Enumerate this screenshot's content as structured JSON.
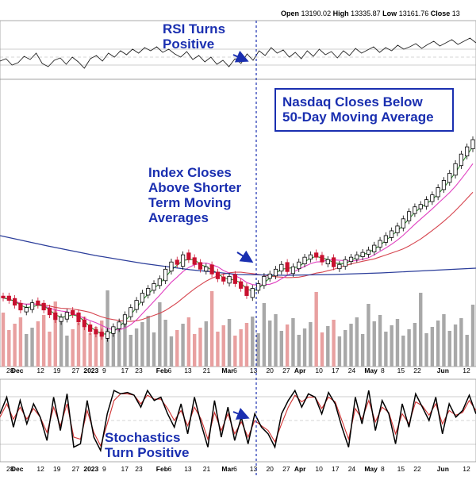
{
  "header": {
    "open_label": "Open",
    "open_value": "13190.02",
    "high_label": "High",
    "high_value": "13335.87",
    "low_label": "Low",
    "low_value": "13161.76",
    "close_label": "Close",
    "close_value": "13"
  },
  "annotations": {
    "rsi": [
      "RSI Turns",
      "Positive"
    ],
    "index": [
      "Index Closes",
      "Above Shorter",
      "Term Moving",
      "Averages"
    ],
    "nasdaq": [
      "Nasdaq Closes Below",
      "50-Day Moving Average"
    ],
    "stochastics": [
      "Stochastics",
      "Turn Positive"
    ]
  },
  "colors": {
    "annotation": "#1a2fb0",
    "rsi_line": "#222222",
    "price_up": "#000000",
    "price_down": "#c8102e",
    "ma_short": "#2e8b2e",
    "ma_mid": "#e040c0",
    "ma_long": "#d6454f",
    "ma_200": "#2b3d9a",
    "volume_up": "#a8a8a8",
    "volume_down": "#e8a0a0",
    "stoch_k": "#000000",
    "stoch_d": "#d03030",
    "grid": "#dddddd"
  },
  "chart_data": {
    "type": "candlestick",
    "x_axis_labels": [
      "28",
      "Dec",
      "12",
      "19",
      "27",
      "2023",
      "9",
      "17",
      "23",
      "Feb",
      "6",
      "13",
      "21",
      "Mar",
      "6",
      "13",
      "20",
      "27",
      "Apr",
      "10",
      "17",
      "24",
      "May",
      "8",
      "15",
      "22",
      "Jun",
      "12"
    ],
    "x_axis_label_days": [
      -2,
      0,
      11,
      18,
      26,
      31,
      39,
      47,
      53,
      62,
      67,
      74,
      82,
      90,
      95,
      102,
      109,
      116,
      121,
      130,
      137,
      144,
      151,
      158,
      165,
      172,
      182,
      193
    ],
    "stoch_axis_labels": [
      "28",
      "Dec",
      "12",
      "19",
      "27",
      "2023",
      "9",
      "17",
      "23",
      "Feb",
      "6",
      "13",
      "21",
      "Mar",
      "6",
      "13",
      "20",
      "27",
      "Apr",
      "10",
      "17",
      "24",
      "May",
      "8",
      "15",
      "22",
      "Jun",
      "12"
    ],
    "price_closes": [
      11400,
      11350,
      11250,
      11150,
      11200,
      11300,
      11250,
      11150,
      11050,
      10950,
      11000,
      11100,
      11050,
      10900,
      10800,
      10700,
      10650,
      10600,
      10700,
      10800,
      10900,
      11050,
      11200,
      11350,
      11500,
      11600,
      11700,
      11800,
      12000,
      12150,
      12100,
      12300,
      12200,
      12100,
      12000,
      12050,
      11900,
      11800,
      11750,
      11850,
      11700,
      11600,
      11450,
      11600,
      11700,
      11850,
      11900,
      12000,
      12100,
      11950,
      12050,
      12150,
      12250,
      12300,
      12250,
      12150,
      12200,
      12050,
      12100,
      12200,
      12250,
      12300,
      12350,
      12400,
      12500,
      12600,
      12700,
      12800,
      12900,
      13050,
      13200,
      13300,
      13350,
      13450,
      13550,
      13700,
      13850,
      14000,
      14200,
      14400,
      14550,
      14700
    ],
    "price_up": [
      false,
      false,
      false,
      false,
      true,
      true,
      false,
      false,
      false,
      false,
      true,
      true,
      false,
      false,
      false,
      false,
      false,
      false,
      true,
      true,
      true,
      true,
      true,
      true,
      true,
      true,
      true,
      true,
      true,
      true,
      false,
      true,
      false,
      false,
      false,
      true,
      false,
      false,
      false,
      true,
      false,
      false,
      false,
      true,
      true,
      true,
      true,
      true,
      true,
      false,
      true,
      true,
      true,
      true,
      false,
      false,
      true,
      false,
      true,
      true,
      true,
      true,
      true,
      true,
      true,
      true,
      true,
      true,
      true,
      true,
      true,
      true,
      true,
      true,
      true,
      true,
      true,
      true,
      true,
      true,
      true,
      true
    ],
    "rsi_values": [
      45,
      48,
      40,
      43,
      51,
      47,
      55,
      42,
      38,
      46,
      49,
      41,
      50,
      44,
      36,
      48,
      52,
      45,
      55,
      50,
      58,
      53,
      60,
      55,
      62,
      58,
      63,
      56,
      60,
      54,
      50,
      57,
      47,
      52,
      44,
      50,
      41,
      46,
      38,
      48,
      42,
      54,
      46,
      58,
      52,
      62,
      55,
      59,
      50,
      56,
      48,
      58,
      51,
      60,
      53,
      57,
      49,
      58,
      52,
      61,
      55,
      59,
      63,
      56,
      62,
      58,
      65,
      60,
      63,
      67,
      61,
      66,
      70,
      64,
      68,
      72,
      66,
      70,
      74,
      68
    ],
    "stochastics_k": [
      60,
      85,
      40,
      80,
      45,
      75,
      55,
      20,
      85,
      35,
      90,
      10,
      15,
      80,
      25,
      5,
      60,
      95,
      90,
      92,
      88,
      70,
      95,
      80,
      85,
      60,
      40,
      75,
      30,
      85,
      45,
      10,
      80,
      25,
      70,
      20,
      55,
      15,
      60,
      40,
      30,
      10,
      60,
      80,
      95,
      70,
      90,
      85,
      60,
      92,
      75,
      40,
      10,
      85,
      45,
      95,
      35,
      80,
      60,
      15,
      75,
      40,
      90,
      70,
      50,
      85,
      30,
      75,
      55,
      65,
      88,
      60
    ],
    "stochastics_d": [
      55,
      75,
      52,
      70,
      52,
      68,
      55,
      32,
      70,
      42,
      75,
      25,
      22,
      65,
      32,
      12,
      45,
      80,
      90,
      90,
      88,
      75,
      88,
      82,
      82,
      68,
      50,
      65,
      42,
      70,
      52,
      22,
      62,
      35,
      60,
      30,
      48,
      25,
      50,
      42,
      35,
      18,
      45,
      70,
      88,
      78,
      85,
      85,
      68,
      85,
      78,
      50,
      22,
      68,
      52,
      80,
      48,
      70,
      62,
      30,
      60,
      45,
      78,
      72,
      58,
      75,
      45,
      65,
      58,
      62,
      80,
      65
    ]
  }
}
